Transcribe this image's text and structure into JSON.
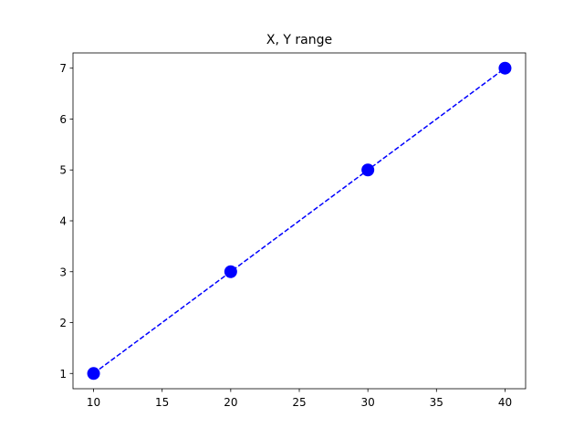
{
  "chart_data": {
    "type": "line",
    "title": "X, Y range",
    "x": [
      10,
      20,
      30,
      40
    ],
    "series": [
      {
        "values": [
          1,
          3,
          5,
          7
        ],
        "color": "#0000ff"
      }
    ],
    "xlim": [
      8.5,
      41.5
    ],
    "xticks": [
      10,
      15,
      20,
      25,
      30,
      35,
      40
    ],
    "ylim": [
      0.7,
      7.3
    ],
    "yticks": [
      1,
      2,
      3,
      4,
      5,
      6,
      7
    ],
    "grid": false,
    "line_style": "dashed",
    "marker": "circle"
  }
}
